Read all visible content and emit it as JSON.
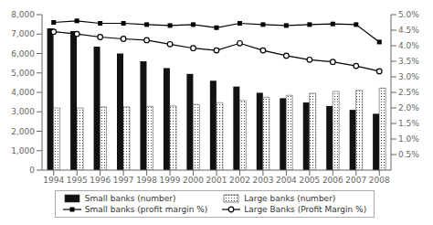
{
  "chart_data": {
    "type": "bar",
    "categories": [
      "1994",
      "1995",
      "1996",
      "1997",
      "1998",
      "1999",
      "2000",
      "2001",
      "2002",
      "2003",
      "2004",
      "2005",
      "2006",
      "2007",
      "2008"
    ],
    "series": [
      {
        "name": "Small banks (number)",
        "type": "bar",
        "color": "#111111",
        "values": [
          7300,
          7150,
          6350,
          6000,
          5600,
          5250,
          4950,
          4600,
          4300,
          3980,
          3700,
          3480,
          3300,
          3100,
          2900
        ]
      },
      {
        "name": "Large banks (number)",
        "type": "bar",
        "color": "#ffffff",
        "values": [
          3200,
          3200,
          3250,
          3250,
          3280,
          3300,
          3380,
          3470,
          3580,
          3750,
          3850,
          3950,
          4050,
          4100,
          4220
        ]
      },
      {
        "name": "Small banks (profit margin %)",
        "type": "line",
        "axis": "y2",
        "color": "#000000",
        "marker": "square",
        "values": [
          4.75,
          4.8,
          4.72,
          4.72,
          4.68,
          4.65,
          4.68,
          4.58,
          4.72,
          4.68,
          4.65,
          4.68,
          4.7,
          4.68,
          4.12
        ]
      },
      {
        "name": "Large Banks (Profit Margin %)",
        "type": "line",
        "axis": "y2",
        "color": "#000000",
        "marker": "circle",
        "values": [
          4.45,
          4.38,
          4.28,
          4.22,
          4.18,
          4.05,
          3.92,
          3.85,
          4.08,
          3.85,
          3.68,
          3.55,
          3.48,
          3.35,
          3.18
        ]
      }
    ],
    "ylim": [
      0,
      8000
    ],
    "yticks": [
      0,
      {
        "value": 1000,
        "label": "1,000"
      },
      {
        "value": 2000,
        "label": "2,000"
      },
      {
        "value": 3000,
        "label": "3,000"
      },
      {
        "value": 4000,
        "label": "4,000"
      },
      {
        "value": 5000,
        "label": "5,000"
      },
      {
        "value": 6000,
        "label": "6,000"
      },
      {
        "value": 7000,
        "label": "7,000"
      },
      {
        "value": 8000,
        "label": "8,000"
      }
    ],
    "y2lim": [
      0.0,
      5.0
    ],
    "y2ticks": [
      {
        "value": 0.5,
        "label": "0.5%"
      },
      {
        "value": 1.0,
        "label": "1.0%"
      },
      {
        "value": 1.5,
        "label": "1.5%"
      },
      {
        "value": 2.0,
        "label": "2.0%"
      },
      {
        "value": 2.5,
        "label": "2.5%"
      },
      {
        "value": 3.0,
        "label": "3.0%"
      },
      {
        "value": 3.5,
        "label": "3.5%"
      },
      {
        "value": 4.0,
        "label": "4.0%"
      },
      {
        "value": 4.5,
        "label": "4.5%"
      },
      {
        "value": 5.0,
        "label": "5.0%"
      }
    ],
    "grid": false,
    "legend": "bottom"
  }
}
